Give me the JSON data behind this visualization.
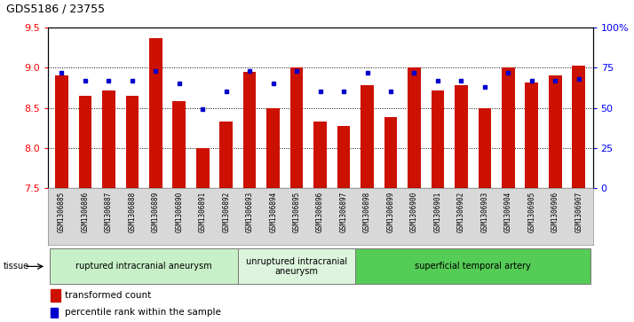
{
  "title": "GDS5186 / 23755",
  "samples": [
    "GSM1306885",
    "GSM1306886",
    "GSM1306887",
    "GSM1306888",
    "GSM1306889",
    "GSM1306890",
    "GSM1306891",
    "GSM1306892",
    "GSM1306893",
    "GSM1306894",
    "GSM1306895",
    "GSM1306896",
    "GSM1306897",
    "GSM1306898",
    "GSM1306899",
    "GSM1306900",
    "GSM1306901",
    "GSM1306902",
    "GSM1306903",
    "GSM1306904",
    "GSM1306905",
    "GSM1306906",
    "GSM1306907"
  ],
  "transformed_count": [
    8.9,
    8.65,
    8.72,
    8.65,
    9.37,
    8.58,
    8.0,
    8.33,
    8.95,
    8.5,
    9.0,
    8.33,
    8.28,
    8.78,
    8.38,
    9.0,
    8.72,
    8.78,
    8.5,
    9.0,
    8.82,
    8.9,
    9.03
  ],
  "percentile_rank": [
    72,
    67,
    67,
    67,
    73,
    65,
    49,
    60,
    73,
    65,
    73,
    60,
    60,
    72,
    60,
    72,
    67,
    67,
    63,
    72,
    67,
    67,
    68
  ],
  "ylim_left": [
    7.5,
    9.5
  ],
  "ylim_right": [
    0,
    100
  ],
  "yticks_left": [
    7.5,
    8.0,
    8.5,
    9.0,
    9.5
  ],
  "yticks_right": [
    0,
    25,
    50,
    75,
    100
  ],
  "ytick_labels_right": [
    "0",
    "25",
    "50",
    "75",
    "100%"
  ],
  "groups": [
    {
      "label": "ruptured intracranial aneurysm",
      "start": 0,
      "end": 8,
      "color": "#c8f0c8"
    },
    {
      "label": "unruptured intracranial\naneurysm",
      "start": 8,
      "end": 13,
      "color": "#ddf5dd"
    },
    {
      "label": "superficial temporal artery",
      "start": 13,
      "end": 23,
      "color": "#55cc55"
    }
  ],
  "bar_color": "#cc1100",
  "dot_color": "#0000cc",
  "bar_bottom": 7.5,
  "plot_bg": "#ffffff",
  "xtick_bg": "#d8d8d8",
  "legend_bar_label": "transformed count",
  "legend_dot_label": "percentile rank within the sample",
  "tissue_label": "tissue"
}
